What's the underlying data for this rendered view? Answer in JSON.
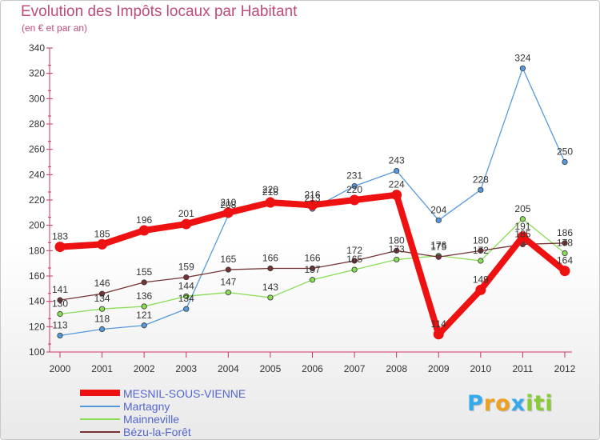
{
  "chart_data": {
    "type": "line",
    "title": "Evolution des Impôts locaux par Habitant",
    "subtitle": "(en € et par an)",
    "x": [
      "2000",
      "2001",
      "2002",
      "2003",
      "2004",
      "2005",
      "2006",
      "2007",
      "2008",
      "2009",
      "2010",
      "2011",
      "2012"
    ],
    "ylim": [
      100,
      340
    ],
    "yticks": [
      100,
      120,
      140,
      160,
      180,
      200,
      220,
      240,
      260,
      280,
      300,
      320,
      340
    ],
    "grid": false,
    "legend_position": "bottom-left",
    "series": [
      {
        "name": "MESNIL-SOUS-VIENNE",
        "color": "#ee1111",
        "emphasis": true,
        "values": [
          183,
          185,
          196,
          201,
          210,
          218,
          216,
          220,
          224,
          114,
          149,
          191,
          164
        ],
        "labels": [
          "183",
          "185",
          "196",
          "201",
          "210",
          "218",
          "216",
          "220",
          "224",
          "114",
          "149",
          "191",
          "164"
        ]
      },
      {
        "name": "Martagny",
        "color": "#5599dd",
        "values": [
          113,
          118,
          121,
          134,
          208,
          220,
          213,
          231,
          243,
          204,
          228,
          324,
          250
        ],
        "labels": [
          "113",
          "118",
          "121",
          "134",
          "208",
          "220",
          "213",
          "231",
          "243",
          "204",
          "228",
          "324",
          "250"
        ]
      },
      {
        "name": "Mainneville",
        "color": "#88dd55",
        "values": [
          130,
          134,
          136,
          144,
          147,
          143,
          157,
          165,
          173,
          176,
          172,
          205,
          178
        ],
        "labels": [
          "130",
          "134",
          "136",
          "144",
          "147",
          "143",
          "157",
          "165",
          "173",
          "176",
          "172",
          "205",
          "178"
        ]
      },
      {
        "name": "Bézu-la-Forêt",
        "color": "#773333",
        "values": [
          141,
          146,
          155,
          159,
          165,
          166,
          166,
          172,
          180,
          175,
          180,
          185,
          186
        ],
        "labels": [
          "141",
          "146",
          "155",
          "159",
          "165",
          "166",
          "166",
          "172",
          "180",
          "175",
          "180",
          "185",
          "186"
        ]
      }
    ]
  },
  "branding": {
    "logo_letters": [
      "P",
      "r",
      "o",
      "x",
      "i",
      "t",
      "i"
    ],
    "logo_colors": [
      "#33aaee",
      "#f0a020",
      "#f0a020",
      "#33aaee",
      "#88cc33",
      "#88cc33",
      "#88cc33"
    ]
  }
}
